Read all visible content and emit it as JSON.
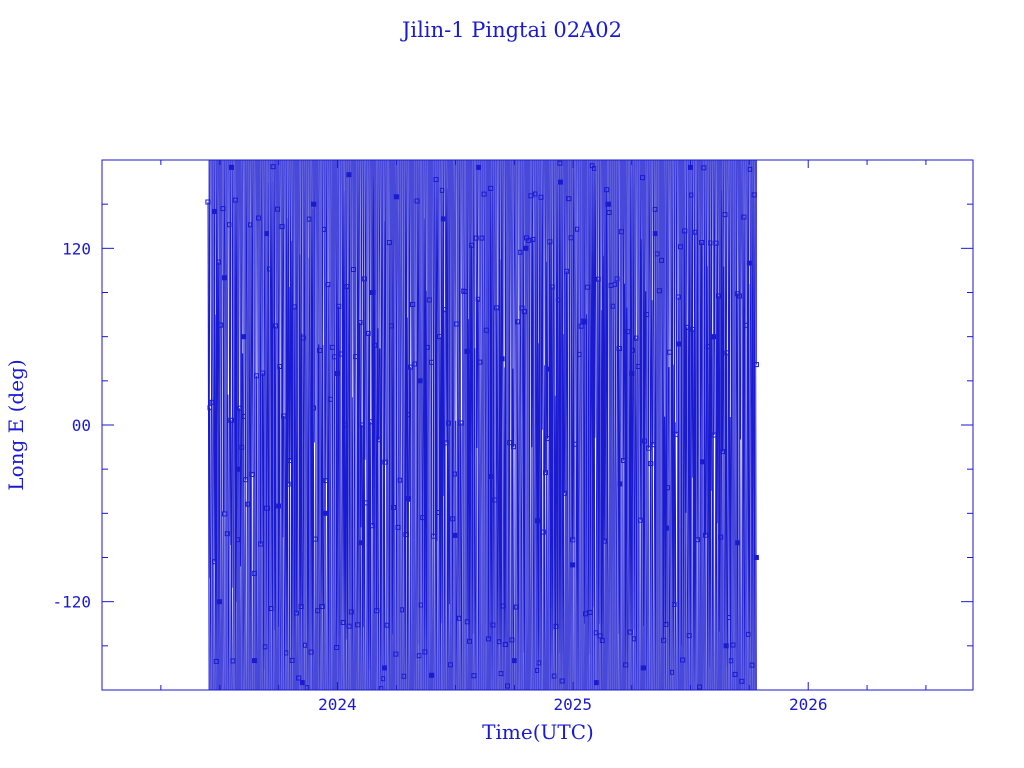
{
  "chart_data": {
    "type": "line",
    "title": "Jilin-1 Pingtai 02A02",
    "xlabel": "Time(UTC)",
    "ylabel": "Long E (deg)",
    "xlim": [
      2023.0,
      2026.7
    ],
    "ylim": [
      -180,
      180
    ],
    "x_ticks": [
      2024,
      2025,
      2026
    ],
    "x_tick_labels": [
      "2024",
      "2025",
      "2026"
    ],
    "y_ticks": [
      -120,
      0,
      120
    ],
    "y_tick_labels": [
      "-120",
      "00",
      "120"
    ],
    "data_range": [
      2023.45,
      2025.78
    ],
    "series": [
      {
        "x": [
          2023.48,
          2023.5,
          2023.52,
          2023.55,
          2023.58,
          2023.6,
          2023.65,
          2023.7,
          2023.75,
          2023.8,
          2023.85,
          2023.9,
          2023.95,
          2024.0,
          2024.05,
          2024.1,
          2024.15,
          2024.2,
          2024.25,
          2024.3,
          2024.35,
          2024.4,
          2024.45,
          2024.5,
          2024.55,
          2024.6,
          2024.65,
          2024.7,
          2024.75,
          2024.8,
          2024.85,
          2024.9,
          2024.95,
          2025.0,
          2025.05,
          2025.1,
          2025.15,
          2025.2,
          2025.25,
          2025.3,
          2025.35,
          2025.4,
          2025.45,
          2025.5,
          2025.55,
          2025.6,
          2025.65,
          2025.7,
          2025.75,
          2025.78
        ],
        "y": [
          145,
          -120,
          100,
          175,
          -30,
          60,
          -160,
          130,
          -55,
          40,
          -175,
          150,
          -60,
          35,
          170,
          -80,
          90,
          -165,
          155,
          -50,
          30,
          -170,
          140,
          -75,
          50,
          175,
          -35,
          45,
          -160,
          120,
          -65,
          38,
          165,
          -95,
          70,
          -175,
          150,
          -40,
          35,
          -165,
          130,
          -70,
          55,
          175,
          -25,
          60,
          -150,
          -80,
          110,
          -90
        ]
      }
    ]
  }
}
